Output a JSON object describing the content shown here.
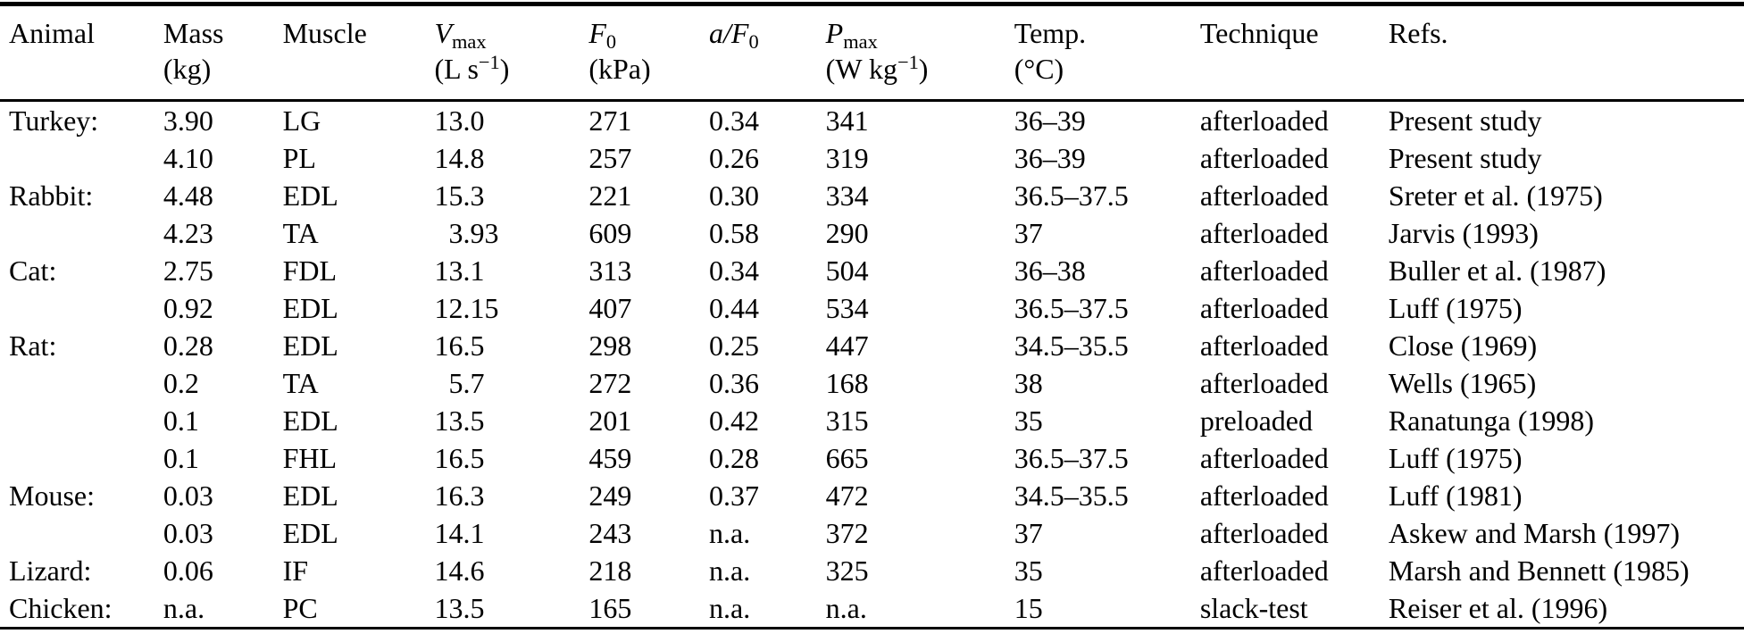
{
  "colors": {
    "text": "#000000",
    "background": "#ffffff",
    "rule": "#000000"
  },
  "table": {
    "columns": [
      {
        "id": "animal",
        "line1": [
          {
            "t": "Animal"
          }
        ],
        "line2": []
      },
      {
        "id": "mass",
        "line1": [
          {
            "t": "Mass"
          }
        ],
        "line2": [
          {
            "t": "(kg)"
          }
        ]
      },
      {
        "id": "muscle",
        "line1": [
          {
            "t": "Muscle"
          }
        ],
        "line2": []
      },
      {
        "id": "vmax",
        "line1": [
          {
            "t": "V",
            "s": "i"
          },
          {
            "t": "max",
            "s": "sub"
          }
        ],
        "line2": [
          {
            "t": "(L s"
          },
          {
            "t": "−1",
            "s": "sup"
          },
          {
            "t": ")"
          }
        ]
      },
      {
        "id": "f0",
        "line1": [
          {
            "t": "F",
            "s": "i"
          },
          {
            "t": "0",
            "s": "sub"
          }
        ],
        "line2": [
          {
            "t": "(kPa)"
          }
        ]
      },
      {
        "id": "af0",
        "line1": [
          {
            "t": "a",
            "s": "i"
          },
          {
            "t": "/",
            "s": "i"
          },
          {
            "t": "F",
            "s": "i"
          },
          {
            "t": "0",
            "s": "sub"
          }
        ],
        "line2": []
      },
      {
        "id": "pmax",
        "line1": [
          {
            "t": "P",
            "s": "i"
          },
          {
            "t": "max",
            "s": "sub"
          }
        ],
        "line2": [
          {
            "t": "(W kg"
          },
          {
            "t": "−1",
            "s": "sup"
          },
          {
            "t": ")"
          }
        ]
      },
      {
        "id": "temp",
        "line1": [
          {
            "t": "Temp."
          }
        ],
        "line2": [
          {
            "t": "(°C)"
          }
        ]
      },
      {
        "id": "technique",
        "line1": [
          {
            "t": "Technique"
          }
        ],
        "line2": []
      },
      {
        "id": "refs",
        "line1": [
          {
            "t": "Refs."
          }
        ],
        "line2": []
      }
    ],
    "rows": [
      [
        "Turkey:",
        "3.90",
        "LG",
        "13.0",
        "271",
        "0.34",
        "341",
        "36–39",
        "afterloaded",
        "Present study"
      ],
      [
        "",
        "4.10",
        "PL",
        "14.8",
        "257",
        "0.26",
        "319",
        "36–39",
        "afterloaded",
        "Present study"
      ],
      [
        "Rabbit:",
        "4.48",
        "EDL",
        "15.3",
        "221",
        "0.30",
        "334",
        "36.5–37.5",
        "afterloaded",
        "Sreter et al. (1975)"
      ],
      [
        "",
        "4.23",
        "TA",
        "3.93",
        "609",
        "0.58",
        "290",
        "37",
        "afterloaded",
        "Jarvis (1993)"
      ],
      [
        "Cat:",
        "2.75",
        "FDL",
        "13.1",
        "313",
        "0.34",
        "504",
        "36–38",
        "afterloaded",
        "Buller et al. (1987)"
      ],
      [
        "",
        "0.92",
        "EDL",
        "12.15",
        "407",
        "0.44",
        "534",
        "36.5–37.5",
        "afterloaded",
        "Luff (1975)"
      ],
      [
        "Rat:",
        "0.28",
        "EDL",
        "16.5",
        "298",
        "0.25",
        "447",
        "34.5–35.5",
        "afterloaded",
        "Close (1969)"
      ],
      [
        "",
        "0.2",
        "TA",
        "5.7",
        "272",
        "0.36",
        "168",
        "38",
        "afterloaded",
        "Wells (1965)"
      ],
      [
        "",
        "0.1",
        "EDL",
        "13.5",
        "201",
        "0.42",
        "315",
        "35",
        "preloaded",
        "Ranatunga (1998)"
      ],
      [
        "",
        "0.1",
        "FHL",
        "16.5",
        "459",
        "0.28",
        "665",
        "36.5–37.5",
        "afterloaded",
        "Luff (1975)"
      ],
      [
        "Mouse:",
        "0.03",
        "EDL",
        "16.3",
        "249",
        "0.37",
        "472",
        "34.5–35.5",
        "afterloaded",
        "Luff (1981)"
      ],
      [
        "",
        "0.03",
        "EDL",
        "14.1",
        "243",
        "n.a.",
        "372",
        "37",
        "afterloaded",
        "Askew and Marsh (1997)"
      ],
      [
        "Lizard:",
        "0.06",
        "IF",
        "14.6",
        "218",
        "n.a.",
        "325",
        "35",
        "afterloaded",
        "Marsh and Bennett (1985)"
      ],
      [
        "Chicken:",
        "n.a.",
        "PC",
        "13.5",
        "165",
        "n.a.",
        "n.a.",
        "15",
        "slack-test",
        "Reiser et al. (1996)"
      ]
    ]
  }
}
